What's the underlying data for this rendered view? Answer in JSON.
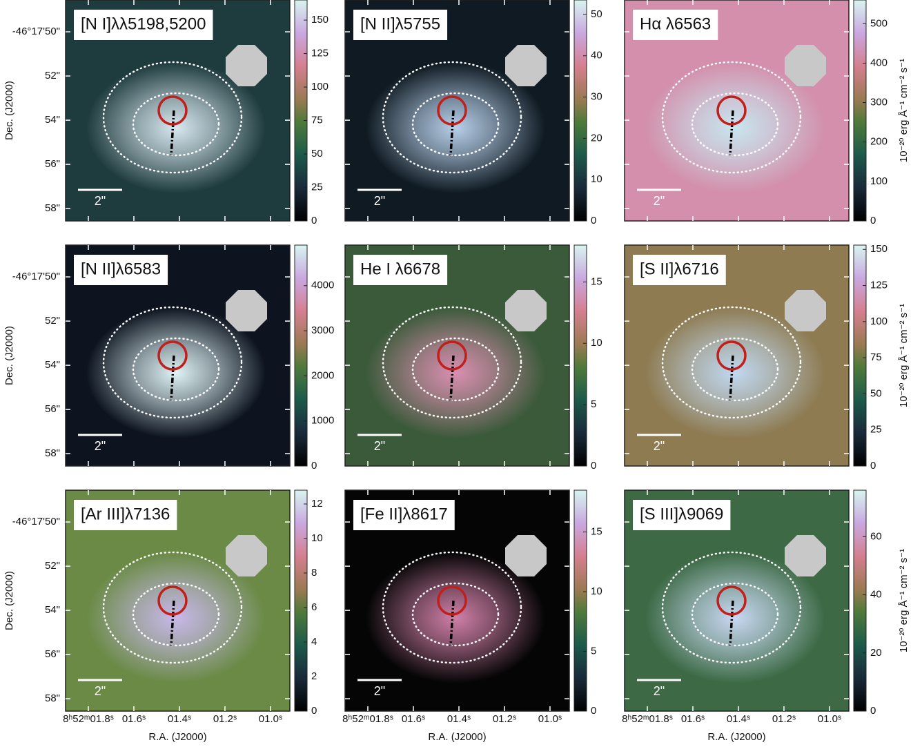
{
  "axes": {
    "ylabel": "Dec. (J2000)",
    "xlabel": "R.A. (J2000)",
    "colorbar_label": "10⁻²⁰ erg Å⁻¹ cm⁻² s⁻¹",
    "scalebar_label": "2\"",
    "ylim": [
      58.56,
      48.56
    ],
    "yticks": [
      {
        "value": 50,
        "label": "-46°17'50\""
      },
      {
        "value": 52,
        "label": "52\""
      },
      {
        "value": 54,
        "label": "54\""
      },
      {
        "value": 56,
        "label": "56\""
      },
      {
        "value": 58,
        "label": "58\""
      }
    ],
    "xlim": [
      1.9,
      0.915
    ],
    "xticks": [
      {
        "value": 1.8,
        "label": "8ʰ52ᵐ01.8ˢ"
      },
      {
        "value": 1.6,
        "label": "01.6ˢ"
      },
      {
        "value": 1.4,
        "label": "01.4ˢ"
      },
      {
        "value": 1.2,
        "label": "01.2ˢ"
      },
      {
        "value": 1.0,
        "label": "01.0ˢ"
      }
    ]
  },
  "chart_data": [
    {
      "type": "heatmap",
      "title": "[N I]λλ5198,5200",
      "clim": [
        0,
        165
      ],
      "cticks": [
        0,
        25,
        50,
        75,
        100,
        125,
        150
      ],
      "background": "#1e3b3e",
      "peak": "#d9e8f0"
    },
    {
      "type": "heatmap",
      "title": "[N II]λ5755",
      "clim": [
        0,
        53.5
      ],
      "cticks": [
        0,
        10,
        20,
        30,
        40,
        50
      ],
      "background": "#0f1a22",
      "peak": "#b8d0ea"
    },
    {
      "type": "heatmap",
      "title": "Hα λ6563",
      "clim": [
        0,
        560
      ],
      "cticks": [
        0,
        100,
        200,
        300,
        400,
        500
      ],
      "background": "#d38fab",
      "peak": "#c8e6ef"
    },
    {
      "type": "heatmap",
      "title": "[N II]λ6583",
      "clim": [
        0,
        4900
      ],
      "cticks": [
        0,
        1000,
        2000,
        3000,
        4000
      ],
      "background": "#0d1420",
      "peak": "#dff3f5"
    },
    {
      "type": "heatmap",
      "title": "He I λ6678",
      "clim": [
        0,
        18
      ],
      "cticks": [
        0,
        5,
        10,
        15
      ],
      "background": "#3b5a3a",
      "peak": "#d98fb0"
    },
    {
      "type": "heatmap",
      "title": "[S II]λ6716",
      "clim": [
        0,
        153
      ],
      "cticks": [
        0,
        25,
        50,
        75,
        100,
        125,
        150
      ],
      "background": "#8e7b52",
      "peak": "#c0d8f0"
    },
    {
      "type": "heatmap",
      "title": "[Ar III]λ7136",
      "clim": [
        0,
        12.8
      ],
      "cticks": [
        0,
        2,
        4,
        6,
        8,
        10,
        12
      ],
      "background": "#6a8a45",
      "peak": "#c8b8ea"
    },
    {
      "type": "heatmap",
      "title": "[Fe II]λ8617",
      "clim": [
        0,
        18.5
      ],
      "cticks": [
        0,
        5,
        10,
        15
      ],
      "background": "#050505",
      "peak": "#d080a8"
    },
    {
      "type": "heatmap",
      "title": "[S III]λ9069",
      "clim": [
        0,
        76
      ],
      "cticks": [
        0,
        20,
        40,
        60
      ],
      "background": "#3d6a45",
      "peak": "#c8d8f2"
    }
  ]
}
